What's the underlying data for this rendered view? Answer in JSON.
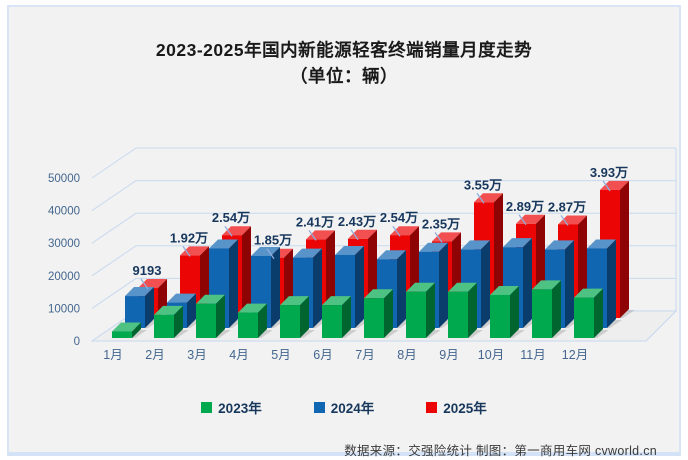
{
  "title": {
    "line1": "2023-2025年国内新能源轻客终端销量月度走势",
    "line2": "（单位：辆）"
  },
  "chart_data": {
    "type": "bar",
    "projection": "3d",
    "title": "2023-2025年国内新能源轻客终端销量月度走势（单位：辆）",
    "categories": [
      "1月",
      "2月",
      "3月",
      "4月",
      "5月",
      "6月",
      "7月",
      "8月",
      "9月",
      "10月",
      "11月",
      "12月"
    ],
    "series": [
      {
        "name": "2023年",
        "color": "#00A84E",
        "values": [
          2000,
          7100,
          10500,
          7800,
          10100,
          10100,
          12200,
          14200,
          14200,
          13200,
          14900,
          12400
        ]
      },
      {
        "name": "2024年",
        "color": "#1166B2",
        "values": [
          9800,
          7800,
          24400,
          22100,
          21600,
          22400,
          21100,
          23400,
          24100,
          24800,
          24100,
          24400
        ]
      },
      {
        "name": "2025年",
        "color": "#EC0505",
        "values": [
          9193,
          19200,
          25400,
          18500,
          24100,
          24300,
          25400,
          23500,
          35500,
          28900,
          28700,
          39300
        ],
        "data_labels": [
          "9193",
          "1.92万",
          "2.54万",
          "1.85万",
          "2.41万",
          "2.43万",
          "2.54万",
          "2.35万",
          "3.55万",
          "2.89万",
          "2.87万",
          "3.93万"
        ]
      }
    ],
    "y_axis": {
      "ylim": [
        0,
        50000
      ],
      "ticks": [
        0,
        10000,
        20000,
        30000,
        40000,
        50000
      ],
      "tick_labels": [
        "0",
        "10000",
        "20000",
        "30000",
        "40000",
        "50000"
      ]
    },
    "legend_position": "bottom",
    "grid": true
  },
  "source_note": "数据来源：交强险统计 制图：第一商用车网 cvworld.cn",
  "colors": {
    "card_background": "#F1F2F1",
    "card_border": "#D9E4F4",
    "gridline": "#C9D9F0",
    "floor_fill": "#EDEEED",
    "axis_text": "#44668F",
    "data_label_text": "#17375D",
    "leader_line": "#93ADDC",
    "legend_text": "#17375D",
    "title_text": "#1A1A1A",
    "source_text": "#3A3A3A"
  }
}
